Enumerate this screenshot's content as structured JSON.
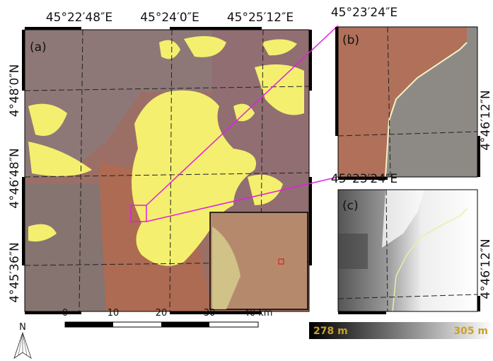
{
  "panel_a": {
    "label": "(a)",
    "x_labels": [
      "45°22′48″E",
      "45°24′0″E",
      "45°25′12″E"
    ],
    "y_labels": [
      "4°48′0″N",
      "4°46′48″N",
      "4°45′36″N"
    ]
  },
  "panel_b": {
    "label": "(b)",
    "x_label": "45°23′24″E",
    "y_label": "4°46′12″N"
  },
  "panel_c": {
    "label": "(c)",
    "x_label": "45°23′24″E",
    "y_label": "4°46′12″N"
  },
  "scale_bar": {
    "labels": [
      "0",
      "10",
      "20",
      "30",
      "40 km"
    ]
  },
  "north_arrow": {
    "label": "N"
  },
  "elevation_legend": {
    "min_label": "278 m",
    "max_label": "305 m"
  }
}
